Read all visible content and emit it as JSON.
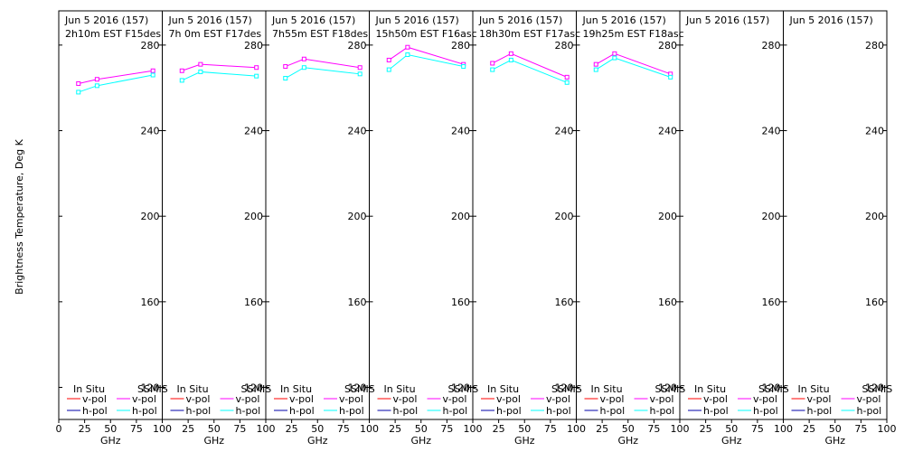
{
  "ylabel": "Brightness Temperature, Deg K",
  "xlabel": "GHz",
  "legend": {
    "in_situ": "In Situ",
    "ssmis": "SSMIS",
    "vpol": "v-pol",
    "hpol": "h-pol"
  },
  "colors": {
    "insitu_v": "#ff0000",
    "insitu_h": "#0000aa",
    "ssmis_v": "#ff00ff",
    "ssmis_h": "#00ffff"
  },
  "chart_data": [
    {
      "type": "line",
      "title": "Jun 5 2016 (157)",
      "subtitle": "2h10m  EST  F15des",
      "xlim": [
        0,
        100
      ],
      "ylim": [
        105,
        296
      ],
      "xticks": [
        0,
        25,
        50,
        75,
        100
      ],
      "yticks": [
        120,
        160,
        200,
        240,
        280
      ],
      "series": [
        {
          "name": "SSMIS v-pol",
          "x": [
            19,
            37,
            91
          ],
          "values": [
            262,
            264,
            268
          ]
        },
        {
          "name": "SSMIS h-pol",
          "x": [
            19,
            37,
            91
          ],
          "values": [
            258,
            261,
            266
          ]
        }
      ]
    },
    {
      "type": "line",
      "title": "Jun 5 2016 (157)",
      "subtitle": "7h 0m  EST  F17des",
      "xlim": [
        0,
        100
      ],
      "ylim": [
        105,
        296
      ],
      "xticks": [
        25,
        50,
        75,
        100
      ],
      "yticks": [
        120,
        160,
        200,
        240,
        280
      ],
      "series": [
        {
          "name": "SSMIS v-pol",
          "x": [
            19,
            37,
            91
          ],
          "values": [
            268,
            271,
            269.5
          ]
        },
        {
          "name": "SSMIS h-pol",
          "x": [
            19,
            37,
            91
          ],
          "values": [
            263.5,
            267.5,
            265.5
          ]
        }
      ]
    },
    {
      "type": "line",
      "title": "Jun 5 2016 (157)",
      "subtitle": "7h55m  EST  F18des",
      "xlim": [
        0,
        100
      ],
      "ylim": [
        105,
        296
      ],
      "xticks": [
        25,
        50,
        75,
        100
      ],
      "yticks": [
        120,
        160,
        200,
        240,
        280
      ],
      "series": [
        {
          "name": "SSMIS v-pol",
          "x": [
            19,
            37,
            91
          ],
          "values": [
            270,
            273.5,
            269.5
          ]
        },
        {
          "name": "SSMIS h-pol",
          "x": [
            19,
            37,
            91
          ],
          "values": [
            264.5,
            269.5,
            266.5
          ]
        }
      ]
    },
    {
      "type": "line",
      "title": "Jun 5 2016 (157)",
      "subtitle": "15h50m  EST  F16asc",
      "xlim": [
        0,
        100
      ],
      "ylim": [
        105,
        296
      ],
      "xticks": [
        25,
        50,
        75,
        100
      ],
      "yticks": [
        120,
        160,
        200,
        240,
        280
      ],
      "series": [
        {
          "name": "SSMIS v-pol",
          "x": [
            19,
            37,
            91
          ],
          "values": [
            273,
            279,
            271
          ]
        },
        {
          "name": "SSMIS h-pol",
          "x": [
            19,
            37,
            91
          ],
          "values": [
            268.5,
            275.5,
            270
          ]
        }
      ]
    },
    {
      "type": "line",
      "title": "Jun 5 2016 (157)",
      "subtitle": "18h30m  EST  F17asc",
      "xlim": [
        0,
        100
      ],
      "ylim": [
        105,
        296
      ],
      "xticks": [
        25,
        50,
        75,
        100
      ],
      "yticks": [
        120,
        160,
        200,
        240,
        280
      ],
      "series": [
        {
          "name": "SSMIS v-pol",
          "x": [
            19,
            37,
            91
          ],
          "values": [
            271.5,
            276,
            265
          ]
        },
        {
          "name": "SSMIS h-pol",
          "x": [
            19,
            37,
            91
          ],
          "values": [
            268.5,
            273,
            262.5
          ]
        }
      ]
    },
    {
      "type": "line",
      "title": "Jun 5 2016 (157)",
      "subtitle": "19h25m  EST  F18asc",
      "xlim": [
        0,
        100
      ],
      "ylim": [
        105,
        296
      ],
      "xticks": [
        25,
        50,
        75,
        100
      ],
      "yticks": [
        120,
        160,
        200,
        240,
        280
      ],
      "series": [
        {
          "name": "SSMIS v-pol",
          "x": [
            19,
            37,
            91
          ],
          "values": [
            271,
            276,
            266.5
          ]
        },
        {
          "name": "SSMIS h-pol",
          "x": [
            19,
            37,
            91
          ],
          "values": [
            268.5,
            274,
            265
          ]
        }
      ]
    },
    {
      "type": "line",
      "title": "Jun 5 2016 (157)",
      "subtitle": "",
      "xlim": [
        0,
        100
      ],
      "ylim": [
        105,
        296
      ],
      "xticks": [
        25,
        50,
        75,
        100
      ],
      "yticks": [
        120,
        160,
        200,
        240,
        280
      ],
      "series": []
    },
    {
      "type": "line",
      "title": "Jun 5 2016 (157)",
      "subtitle": "",
      "xlim": [
        0,
        100
      ],
      "ylim": [
        105,
        296
      ],
      "xticks": [
        25,
        50,
        75,
        100
      ],
      "yticks": [
        120,
        160,
        200,
        240,
        280
      ],
      "series": []
    }
  ]
}
